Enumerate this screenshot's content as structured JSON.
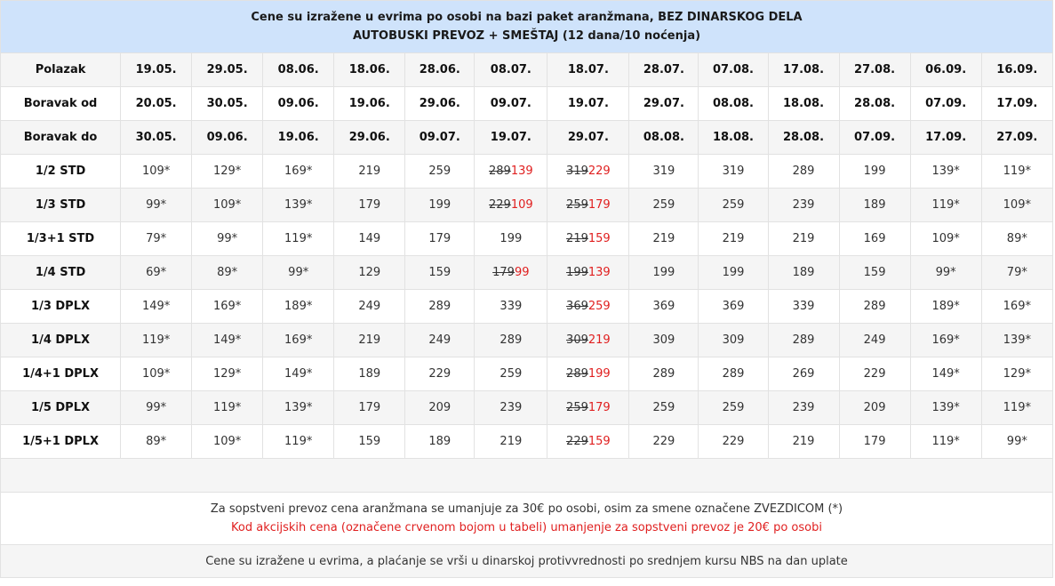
{
  "header": {
    "line1": "Cene su izražene u evrima po osobi na bazi paket aranžmana, BEZ DINARSKOG DELA",
    "line2": "AUTOBUSKI PREVOZ + SMEŠTAJ (12 dana/10 noćenja)"
  },
  "date_rows": [
    {
      "label": "Polazak",
      "values": [
        "19.05.",
        "29.05.",
        "08.06.",
        "18.06.",
        "28.06.",
        "08.07.",
        "18.07.",
        "28.07.",
        "07.08.",
        "17.08.",
        "27.08.",
        "06.09.",
        "16.09."
      ]
    },
    {
      "label": "Boravak od",
      "values": [
        "20.05.",
        "30.05.",
        "09.06.",
        "19.06.",
        "29.06.",
        "09.07.",
        "19.07.",
        "29.07.",
        "08.08.",
        "18.08.",
        "28.08.",
        "07.09.",
        "17.09."
      ]
    },
    {
      "label": "Boravak do",
      "values": [
        "30.05.",
        "09.06.",
        "19.06.",
        "29.06.",
        "09.07.",
        "19.07.",
        "29.07.",
        "08.08.",
        "18.08.",
        "28.08.",
        "07.09.",
        "17.09.",
        "27.09."
      ]
    }
  ],
  "price_rows": [
    {
      "label": "1/2 STD",
      "cells": [
        {
          "v": "109*"
        },
        {
          "v": "129*"
        },
        {
          "v": "169*"
        },
        {
          "v": "219"
        },
        {
          "v": "259"
        },
        {
          "old": "289",
          "new": "139"
        },
        {
          "old": "319",
          "new": "229"
        },
        {
          "v": "319"
        },
        {
          "v": "319"
        },
        {
          "v": "289"
        },
        {
          "v": "199"
        },
        {
          "v": "139*"
        },
        {
          "v": "119*"
        }
      ]
    },
    {
      "label": "1/3 STD",
      "cells": [
        {
          "v": "99*"
        },
        {
          "v": "109*"
        },
        {
          "v": "139*"
        },
        {
          "v": "179"
        },
        {
          "v": "199"
        },
        {
          "old": "229",
          "new": "109"
        },
        {
          "old": "259",
          "new": "179"
        },
        {
          "v": "259"
        },
        {
          "v": "259"
        },
        {
          "v": "239"
        },
        {
          "v": "189"
        },
        {
          "v": "119*"
        },
        {
          "v": "109*"
        }
      ]
    },
    {
      "label": "1/3+1 STD",
      "cells": [
        {
          "v": "79*"
        },
        {
          "v": "99*"
        },
        {
          "v": "119*"
        },
        {
          "v": "149"
        },
        {
          "v": "179"
        },
        {
          "v": "199"
        },
        {
          "old": "219",
          "new": "159"
        },
        {
          "v": "219"
        },
        {
          "v": "219"
        },
        {
          "v": "219"
        },
        {
          "v": "169"
        },
        {
          "v": "109*"
        },
        {
          "v": "89*"
        }
      ]
    },
    {
      "label": "1/4 STD",
      "cells": [
        {
          "v": "69*"
        },
        {
          "v": "89*"
        },
        {
          "v": "99*"
        },
        {
          "v": "129"
        },
        {
          "v": "159"
        },
        {
          "old": "179",
          "new": "99"
        },
        {
          "old": "199",
          "new": "139"
        },
        {
          "v": "199"
        },
        {
          "v": "199"
        },
        {
          "v": "189"
        },
        {
          "v": "159"
        },
        {
          "v": "99*"
        },
        {
          "v": "79*"
        }
      ]
    },
    {
      "label": "1/3 DPLX",
      "cells": [
        {
          "v": "149*"
        },
        {
          "v": "169*"
        },
        {
          "v": "189*"
        },
        {
          "v": "249"
        },
        {
          "v": "289"
        },
        {
          "v": "339"
        },
        {
          "old": "369",
          "new": "259"
        },
        {
          "v": "369"
        },
        {
          "v": "369"
        },
        {
          "v": "339"
        },
        {
          "v": "289"
        },
        {
          "v": "189*"
        },
        {
          "v": "169*"
        }
      ]
    },
    {
      "label": "1/4 DPLX",
      "cells": [
        {
          "v": "119*"
        },
        {
          "v": "149*"
        },
        {
          "v": "169*"
        },
        {
          "v": "219"
        },
        {
          "v": "249"
        },
        {
          "v": "289"
        },
        {
          "old": "309",
          "new": "219"
        },
        {
          "v": "309"
        },
        {
          "v": "309"
        },
        {
          "v": "289"
        },
        {
          "v": "249"
        },
        {
          "v": "169*"
        },
        {
          "v": "139*"
        }
      ]
    },
    {
      "label": "1/4+1 DPLX",
      "cells": [
        {
          "v": "109*"
        },
        {
          "v": "129*"
        },
        {
          "v": "149*"
        },
        {
          "v": "189"
        },
        {
          "v": "229"
        },
        {
          "v": "259"
        },
        {
          "old": "289",
          "new": "199"
        },
        {
          "v": "289"
        },
        {
          "v": "289"
        },
        {
          "v": "269"
        },
        {
          "v": "229"
        },
        {
          "v": "149*"
        },
        {
          "v": "129*"
        }
      ]
    },
    {
      "label": "1/5 DPLX",
      "cells": [
        {
          "v": "99*"
        },
        {
          "v": "119*"
        },
        {
          "v": "139*"
        },
        {
          "v": "179"
        },
        {
          "v": "209"
        },
        {
          "v": "239"
        },
        {
          "old": "259",
          "new": "179"
        },
        {
          "v": "259"
        },
        {
          "v": "259"
        },
        {
          "v": "239"
        },
        {
          "v": "209"
        },
        {
          "v": "139*"
        },
        {
          "v": "119*"
        }
      ]
    },
    {
      "label": "1/5+1 DPLX",
      "cells": [
        {
          "v": "89*"
        },
        {
          "v": "109*"
        },
        {
          "v": "119*"
        },
        {
          "v": "159"
        },
        {
          "v": "189"
        },
        {
          "v": "219"
        },
        {
          "old": "229",
          "new": "159"
        },
        {
          "v": "229"
        },
        {
          "v": "229"
        },
        {
          "v": "219"
        },
        {
          "v": "179"
        },
        {
          "v": "119*"
        },
        {
          "v": "99*"
        }
      ]
    }
  ],
  "notes": {
    "line1": "Za sopstveni prevoz cena aranžmana se umanjuje za 30€ po osobi, osim za smene označene ZVEZDICOM (*)",
    "line2": "Kod akcijskih cena (označene crvenom bojom u tabeli) umanjenje za sopstveni prevoz je 20€ po osobi"
  },
  "footer": "Cene su izražene u evrima, a plaćanje se vrši u dinarskoj protivvrednosti po srednjem kursu NBS na dan uplate",
  "colors": {
    "header_bg": "#cfe3fb",
    "promo_red": "#e02020",
    "stripe": "#f5f5f5"
  }
}
